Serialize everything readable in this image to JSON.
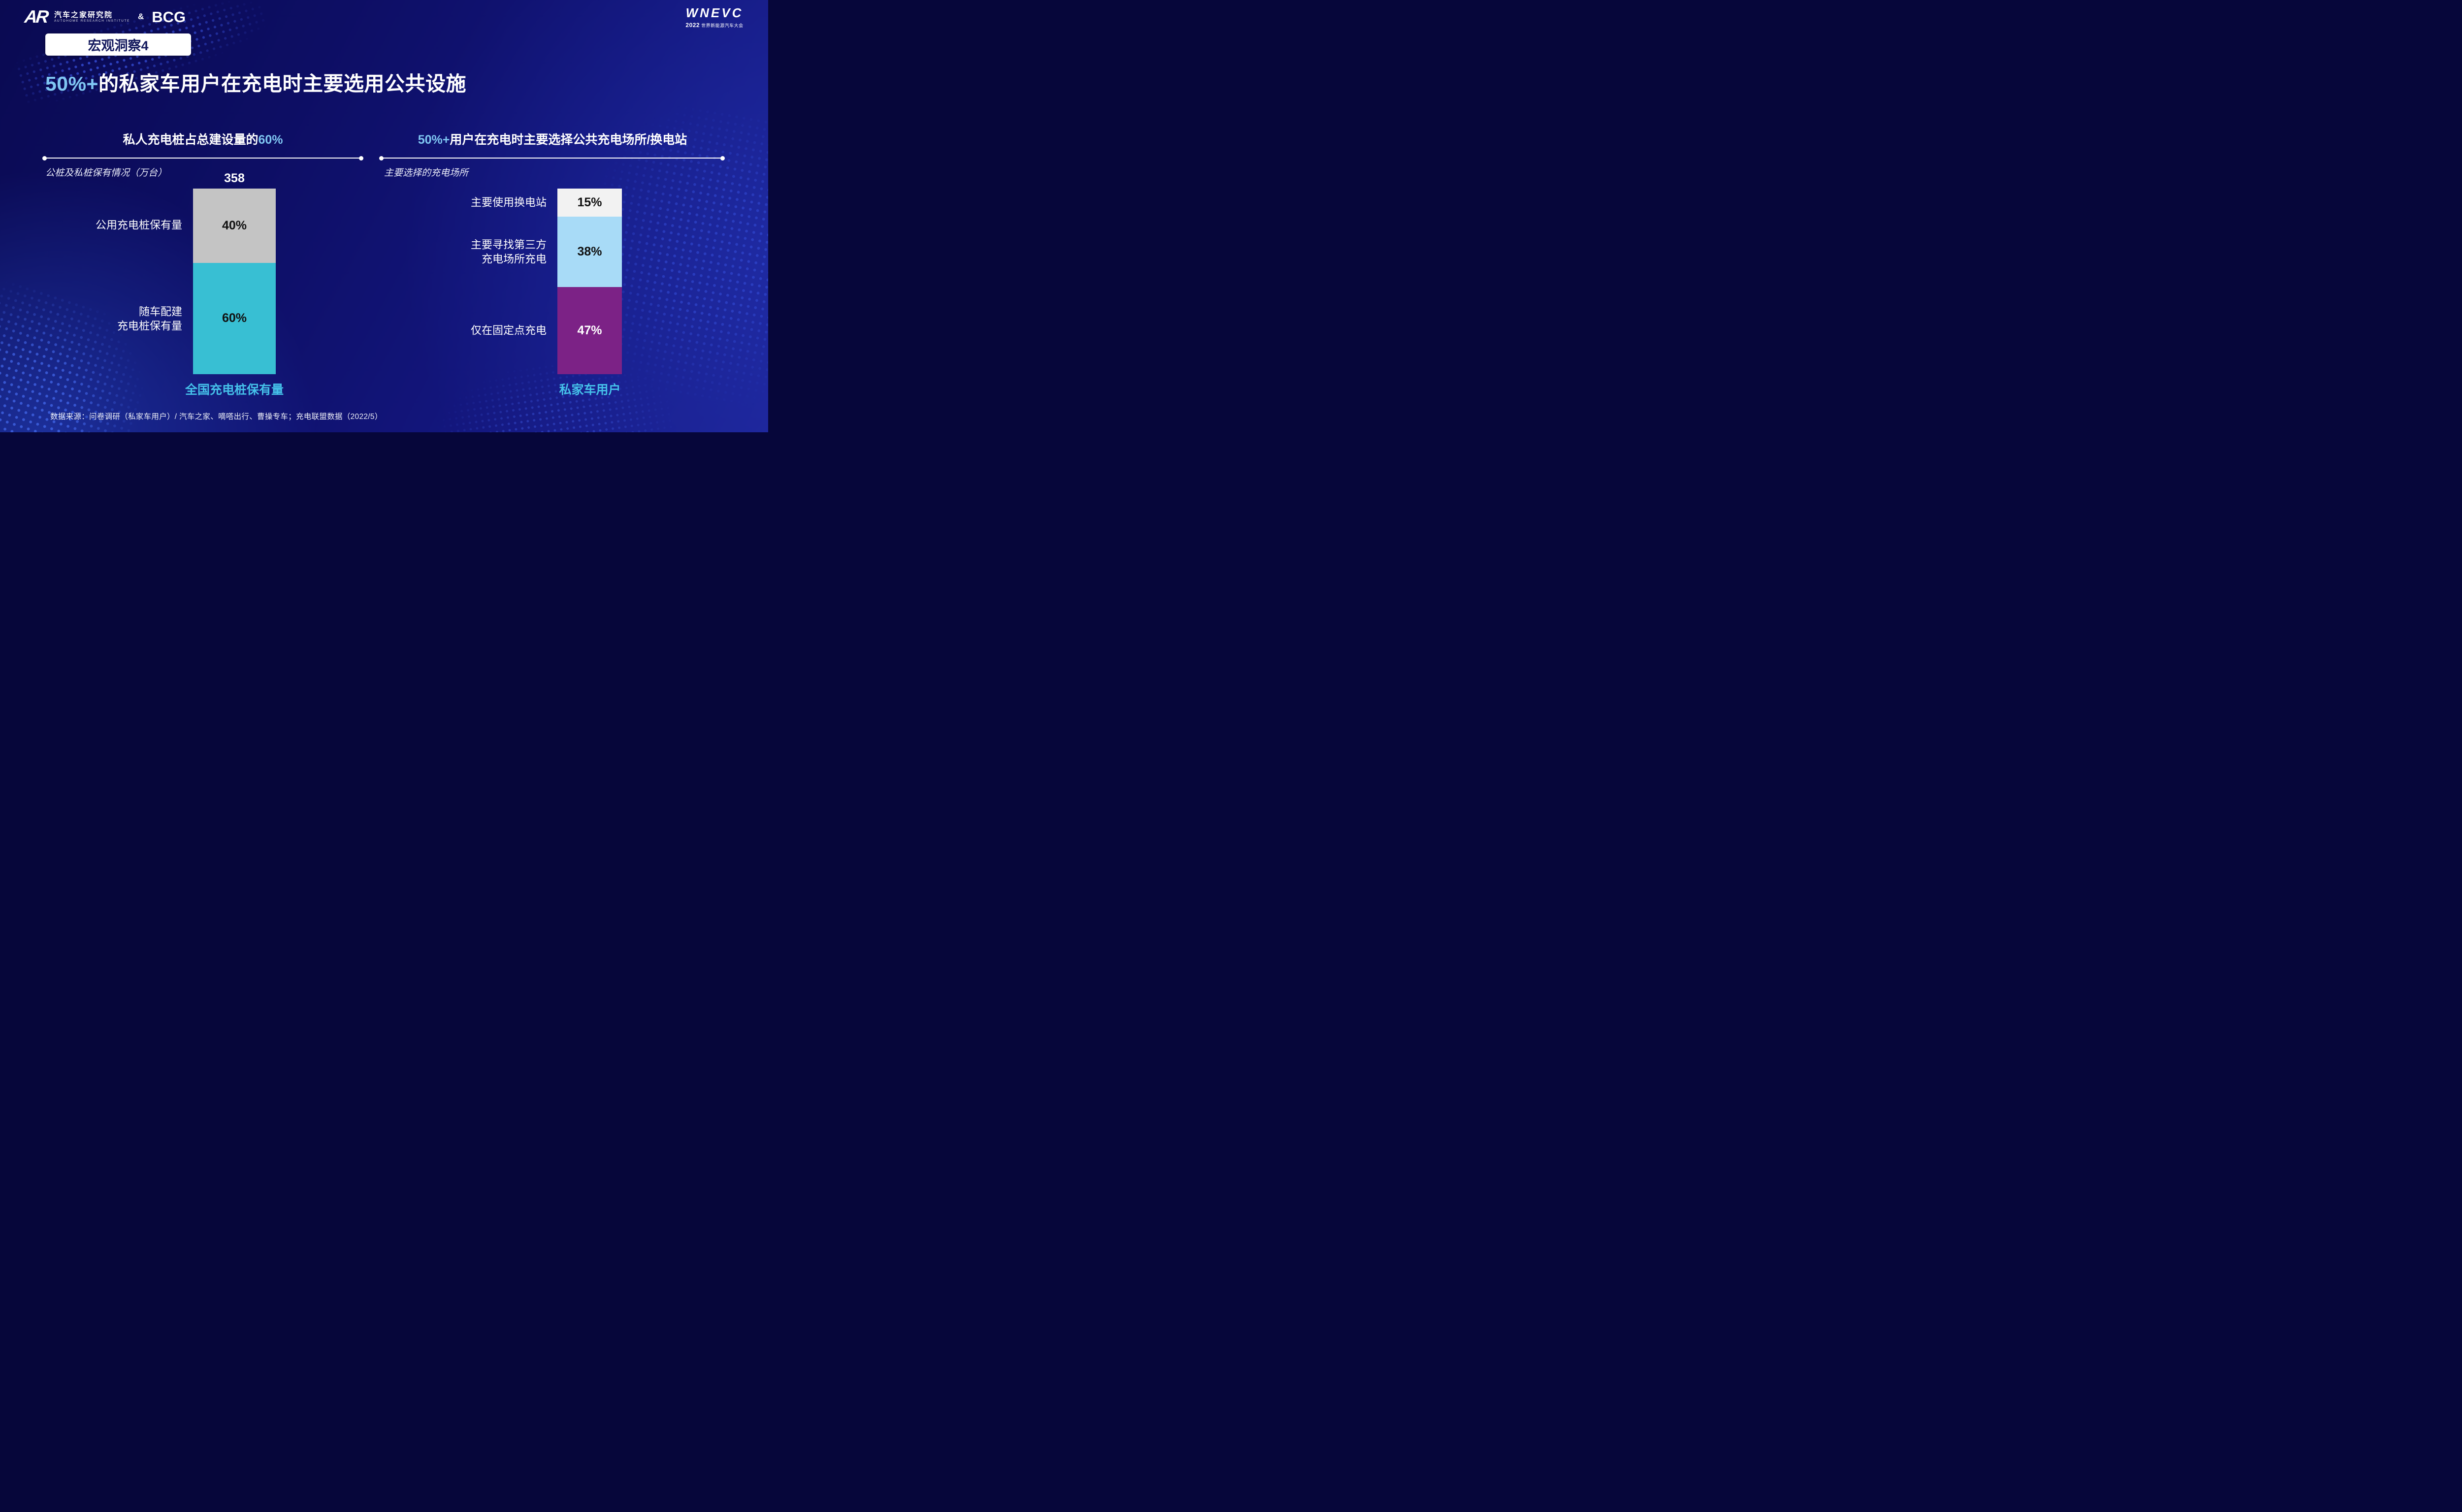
{
  "header": {
    "autohome_logo_mark": "AR",
    "autohome_logo_name": "汽车之家研究院",
    "autohome_logo_sub": "AUTOHOME RESEARCH INSTITUTE",
    "ampersand": "&",
    "bcg_logo": "BCG",
    "wnevc_logo": "WNEVC",
    "wnevc_year": "2022",
    "wnevc_sub": "世界新能源汽车大会"
  },
  "badge": "宏观洞察4",
  "title": {
    "highlight": "50%+",
    "rest": "的私家车用户在充电时主要选用公共设施"
  },
  "left_section": {
    "title_prefix": "私人充电桩占总建设量的",
    "title_highlight": "60%",
    "subtitle": "公桩及私桩保有情况（万台）",
    "row_labels": [
      "公用充电桩保有量",
      "随车配建\n充电桩保有量"
    ],
    "axis_label": "全国充电桩保有量"
  },
  "right_section": {
    "title_highlight": "50%+",
    "title_rest": "用户在充电时主要选择公共充电场所/换电站",
    "subtitle": "主要选择的充电场所",
    "row_labels": [
      "主要使用换电站",
      "主要寻找第三方\n充电场所充电",
      "仅在固定点充电"
    ],
    "axis_label": "私家车用户"
  },
  "source": "数据来源：问卷调研（私家车用户）/ 汽车之家、嘀嗒出行、曹操专车；充电联盟数据（2022/5）",
  "colors": {
    "highlight_blue": "#7fc6f2",
    "axis_cyan": "#45c1ea",
    "background_navy": "#0d0e64"
  },
  "chart_data": [
    {
      "type": "bar",
      "subtype": "stacked-single-column",
      "title": "私人充电桩占总建设量的60%",
      "subtitle": "公桩及私桩保有情况（万台）",
      "categories": [
        "全国充电桩保有量"
      ],
      "total_label": "358",
      "total_unit": "万台",
      "ylim": [
        0,
        100
      ],
      "legend_position": "left-of-bar",
      "grid": false,
      "series": [
        {
          "name": "公用充电桩保有量",
          "values": [
            40
          ],
          "label": "40%",
          "color": "#c4c4c4",
          "text_color": "#111111"
        },
        {
          "name": "随车配建充电桩保有量",
          "values": [
            60
          ],
          "label": "60%",
          "color": "#38bfd3",
          "text_color": "#111111"
        }
      ]
    },
    {
      "type": "bar",
      "subtype": "stacked-single-column",
      "title": "50%+用户在充电时主要选择公共充电场所/换电站",
      "subtitle": "主要选择的充电场所",
      "categories": [
        "私家车用户"
      ],
      "ylim": [
        0,
        100
      ],
      "legend_position": "left-of-bar",
      "grid": false,
      "series": [
        {
          "name": "主要使用换电站",
          "values": [
            15
          ],
          "label": "15%",
          "color": "#f2f2f2",
          "text_color": "#111111"
        },
        {
          "name": "主要寻找第三方充电场所充电",
          "values": [
            38
          ],
          "label": "38%",
          "color": "#a8dbf7",
          "text_color": "#111111"
        },
        {
          "name": "仅在固定点充电",
          "values": [
            47
          ],
          "label": "47%",
          "color": "#7c2286",
          "text_color": "#ffffff"
        }
      ]
    }
  ]
}
